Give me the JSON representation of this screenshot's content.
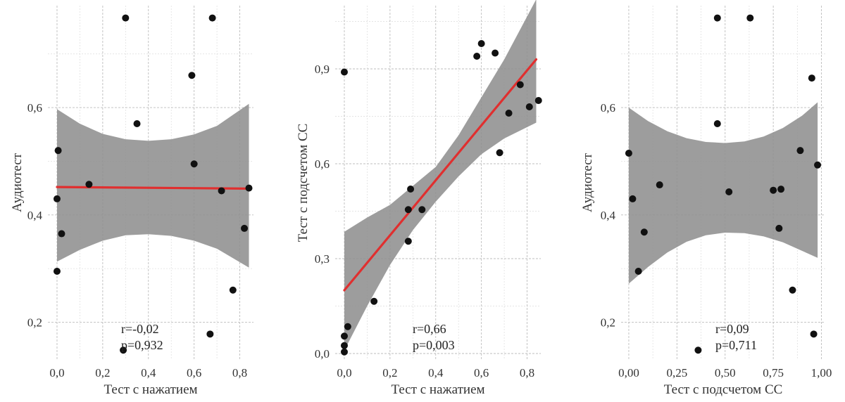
{
  "chart_data": [
    {
      "type": "scatter",
      "xlabel": "Тест с нажатием",
      "ylabel": "Аудиотест",
      "xlim": [
        -0.04,
        0.86
      ],
      "ylim": [
        0.13,
        0.79
      ],
      "x_ticks": [
        0.0,
        0.2,
        0.4,
        0.6,
        0.8
      ],
      "x_tick_labels": [
        "0,0",
        "0,2",
        "0,4",
        "0,6",
        "0,8"
      ],
      "y_ticks": [
        0.2,
        0.4,
        0.6
      ],
      "y_tick_labels": [
        "0,2",
        "0,4",
        "0,6"
      ],
      "grid": true,
      "stats": [
        "r=-0,02",
        "p=0,932"
      ],
      "trend": {
        "x": [
          0.0,
          0.84
        ],
        "y": [
          0.452,
          0.449
        ]
      },
      "band": {
        "x": [
          0.0,
          0.1,
          0.2,
          0.3,
          0.4,
          0.5,
          0.6,
          0.7,
          0.84
        ],
        "lower": [
          0.313,
          0.335,
          0.352,
          0.362,
          0.364,
          0.361,
          0.352,
          0.337,
          0.302
        ],
        "upper": [
          0.597,
          0.57,
          0.551,
          0.541,
          0.538,
          0.541,
          0.55,
          0.566,
          0.607
        ]
      },
      "points": [
        {
          "x": 0.005,
          "y": 0.52
        },
        {
          "x": 0.0,
          "y": 0.43
        },
        {
          "x": 0.02,
          "y": 0.365
        },
        {
          "x": 0.0,
          "y": 0.295
        },
        {
          "x": 0.14,
          "y": 0.457
        },
        {
          "x": 0.3,
          "y": 0.767
        },
        {
          "x": 0.29,
          "y": 0.148
        },
        {
          "x": 0.35,
          "y": 0.57
        },
        {
          "x": 0.59,
          "y": 0.66
        },
        {
          "x": 0.6,
          "y": 0.495
        },
        {
          "x": 0.68,
          "y": 0.767
        },
        {
          "x": 0.67,
          "y": 0.178
        },
        {
          "x": 0.72,
          "y": 0.445
        },
        {
          "x": 0.77,
          "y": 0.26
        },
        {
          "x": 0.82,
          "y": 0.375
        },
        {
          "x": 0.84,
          "y": 0.45
        }
      ]
    },
    {
      "type": "scatter",
      "xlabel": "Тест с нажатием",
      "ylabel": "Тест с подсчетом СС",
      "xlim": [
        -0.04,
        0.86
      ],
      "ylim": [
        -0.02,
        1.1
      ],
      "x_ticks": [
        0.0,
        0.2,
        0.4,
        0.6,
        0.8
      ],
      "x_tick_labels": [
        "0,0",
        "0,2",
        "0,4",
        "0,6",
        "0,8"
      ],
      "y_ticks": [
        0.0,
        0.3,
        0.6,
        0.9
      ],
      "y_tick_labels": [
        "0,0",
        "0,3",
        "0,6",
        "0,9"
      ],
      "grid": true,
      "stats": [
        "r=0,66",
        "p=0,003"
      ],
      "trend": {
        "x": [
          0.0,
          0.84
        ],
        "y": [
          0.2,
          0.93
        ]
      },
      "band": {
        "x": [
          0.0,
          0.1,
          0.2,
          0.3,
          0.4,
          0.5,
          0.6,
          0.7,
          0.84
        ],
        "lower": [
          0.01,
          0.15,
          0.28,
          0.39,
          0.48,
          0.56,
          0.63,
          0.68,
          0.73
        ],
        "upper": [
          0.385,
          0.43,
          0.47,
          0.53,
          0.59,
          0.69,
          0.81,
          0.93,
          1.12
        ]
      },
      "points": [
        {
          "x": 0.0,
          "y": 0.89
        },
        {
          "x": 0.0,
          "y": 0.055
        },
        {
          "x": 0.0,
          "y": 0.025
        },
        {
          "x": 0.0,
          "y": 0.005
        },
        {
          "x": 0.015,
          "y": 0.085
        },
        {
          "x": 0.13,
          "y": 0.165
        },
        {
          "x": 0.28,
          "y": 0.355
        },
        {
          "x": 0.28,
          "y": 0.455
        },
        {
          "x": 0.29,
          "y": 0.52
        },
        {
          "x": 0.34,
          "y": 0.455
        },
        {
          "x": 0.58,
          "y": 0.94
        },
        {
          "x": 0.6,
          "y": 0.98
        },
        {
          "x": 0.66,
          "y": 0.95
        },
        {
          "x": 0.68,
          "y": 0.635
        },
        {
          "x": 0.72,
          "y": 0.76
        },
        {
          "x": 0.77,
          "y": 0.85
        },
        {
          "x": 0.81,
          "y": 0.78
        },
        {
          "x": 0.85,
          "y": 0.8
        }
      ]
    },
    {
      "type": "scatter",
      "xlabel": "Тест с подсчетом СС",
      "ylabel": "Аудиотест",
      "xlim": [
        -0.04,
        1.02
      ],
      "ylim": [
        0.13,
        0.79
      ],
      "x_ticks": [
        0.0,
        0.25,
        0.5,
        0.75,
        1.0
      ],
      "x_tick_labels": [
        "0,00",
        "0,25",
        "0,50",
        "0,75",
        "1,00"
      ],
      "y_ticks": [
        0.2,
        0.4,
        0.6
      ],
      "y_tick_labels": [
        "0,2",
        "0,4",
        "0,6"
      ],
      "grid": true,
      "stats": [
        "r=0,09",
        "p=0,711"
      ],
      "band": {
        "x": [
          0.0,
          0.1,
          0.2,
          0.3,
          0.4,
          0.5,
          0.6,
          0.7,
          0.8,
          0.9,
          0.98
        ],
        "lower": [
          0.272,
          0.303,
          0.33,
          0.35,
          0.362,
          0.367,
          0.366,
          0.36,
          0.349,
          0.333,
          0.32
        ],
        "upper": [
          0.6,
          0.575,
          0.556,
          0.543,
          0.536,
          0.534,
          0.537,
          0.546,
          0.562,
          0.585,
          0.61
        ]
      },
      "points": [
        {
          "x": 0.0,
          "y": 0.515
        },
        {
          "x": 0.02,
          "y": 0.43
        },
        {
          "x": 0.05,
          "y": 0.295
        },
        {
          "x": 0.08,
          "y": 0.368
        },
        {
          "x": 0.16,
          "y": 0.456
        },
        {
          "x": 0.36,
          "y": 0.148
        },
        {
          "x": 0.46,
          "y": 0.767
        },
        {
          "x": 0.46,
          "y": 0.57
        },
        {
          "x": 0.52,
          "y": 0.443
        },
        {
          "x": 0.63,
          "y": 0.767
        },
        {
          "x": 0.75,
          "y": 0.446
        },
        {
          "x": 0.78,
          "y": 0.375
        },
        {
          "x": 0.79,
          "y": 0.448
        },
        {
          "x": 0.85,
          "y": 0.26
        },
        {
          "x": 0.89,
          "y": 0.52
        },
        {
          "x": 0.95,
          "y": 0.655
        },
        {
          "x": 0.96,
          "y": 0.178
        },
        {
          "x": 0.98,
          "y": 0.493
        }
      ]
    }
  ]
}
